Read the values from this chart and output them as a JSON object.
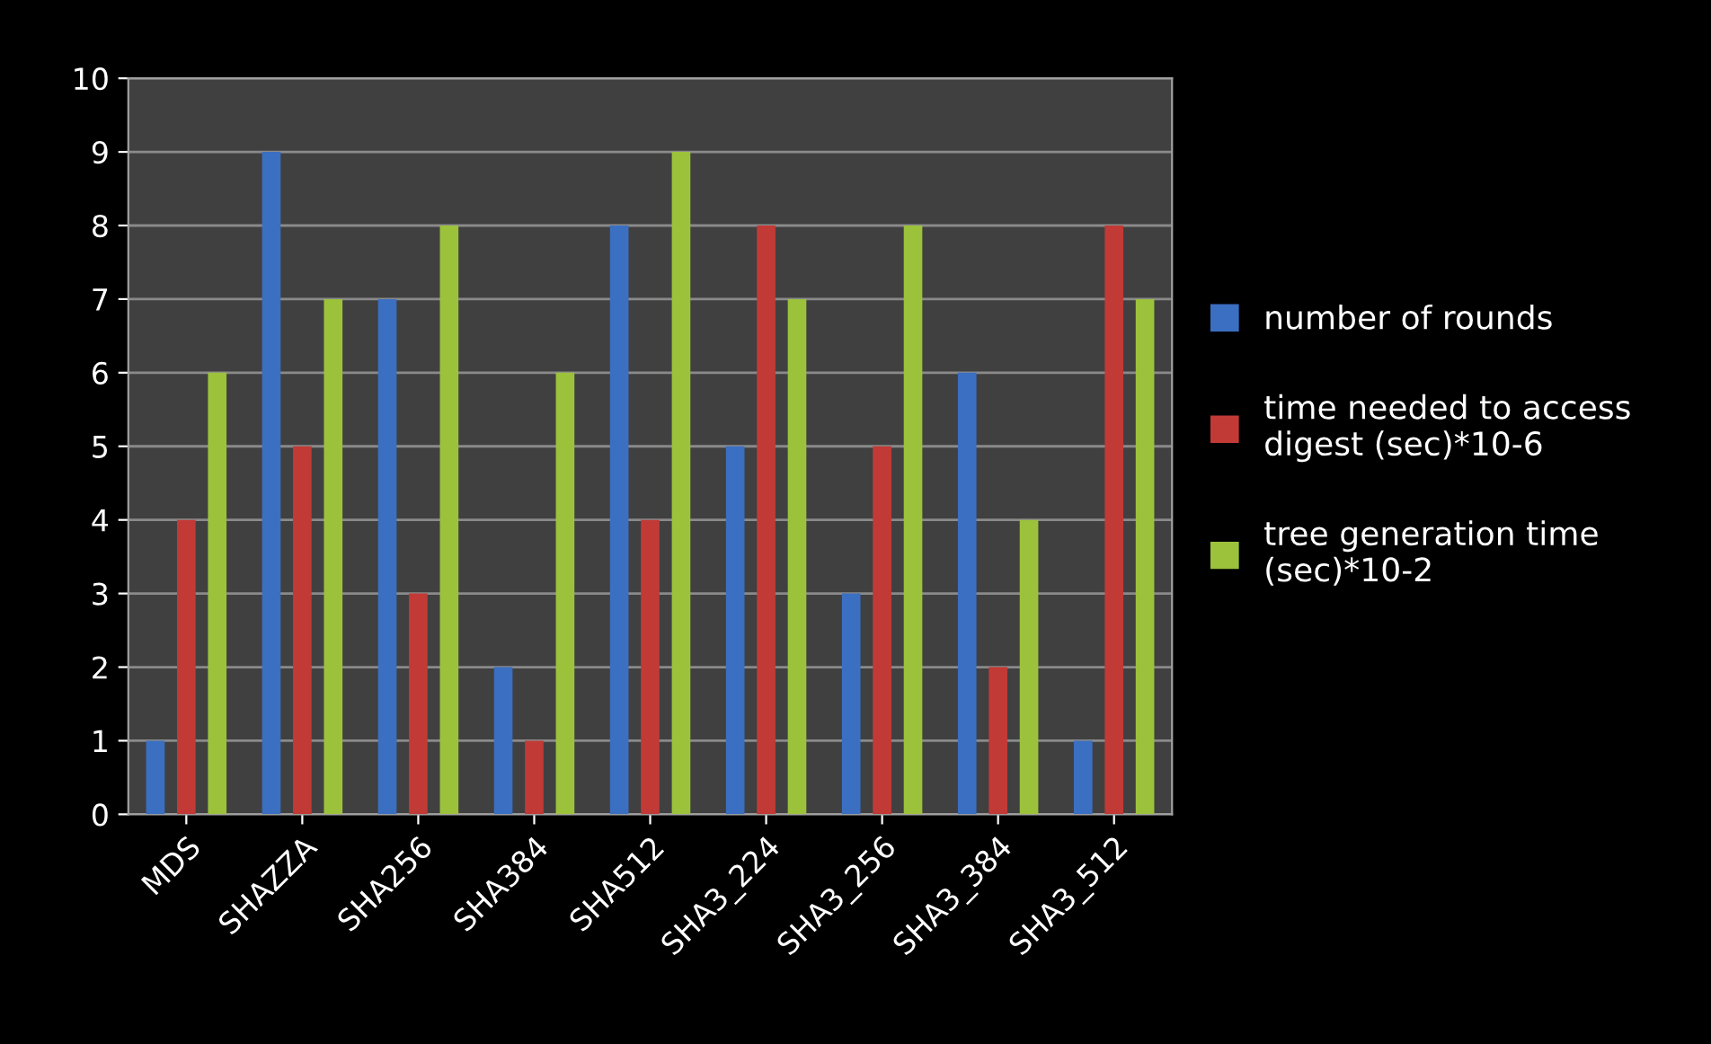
{
  "chart_data": {
    "type": "bar",
    "categories": [
      "MDS",
      "SHAZZA",
      "SHA256",
      "SHA384",
      "SHA512",
      "SHA3_224",
      "SHA3_256",
      "SHA3_384",
      "SHA3_512"
    ],
    "series": [
      {
        "name": "number of rounds",
        "color": "#3b6fc2",
        "values": [
          1,
          9,
          7,
          2,
          8,
          5,
          3,
          6,
          1
        ]
      },
      {
        "name": "time needed to access digest (sec)*10-6",
        "color": "#c23a36",
        "values": [
          4,
          5,
          3,
          1,
          4,
          8,
          5,
          2,
          8
        ]
      },
      {
        "name": "tree generation time (sec)*10-2",
        "color": "#9cc23c",
        "values": [
          6,
          7,
          8,
          6,
          9,
          7,
          8,
          4,
          7
        ]
      }
    ],
    "ylim": [
      0,
      10
    ],
    "yticks": [
      0,
      1,
      2,
      3,
      4,
      5,
      6,
      7,
      8,
      9,
      10
    ],
    "grid": "y",
    "legend": "right"
  }
}
